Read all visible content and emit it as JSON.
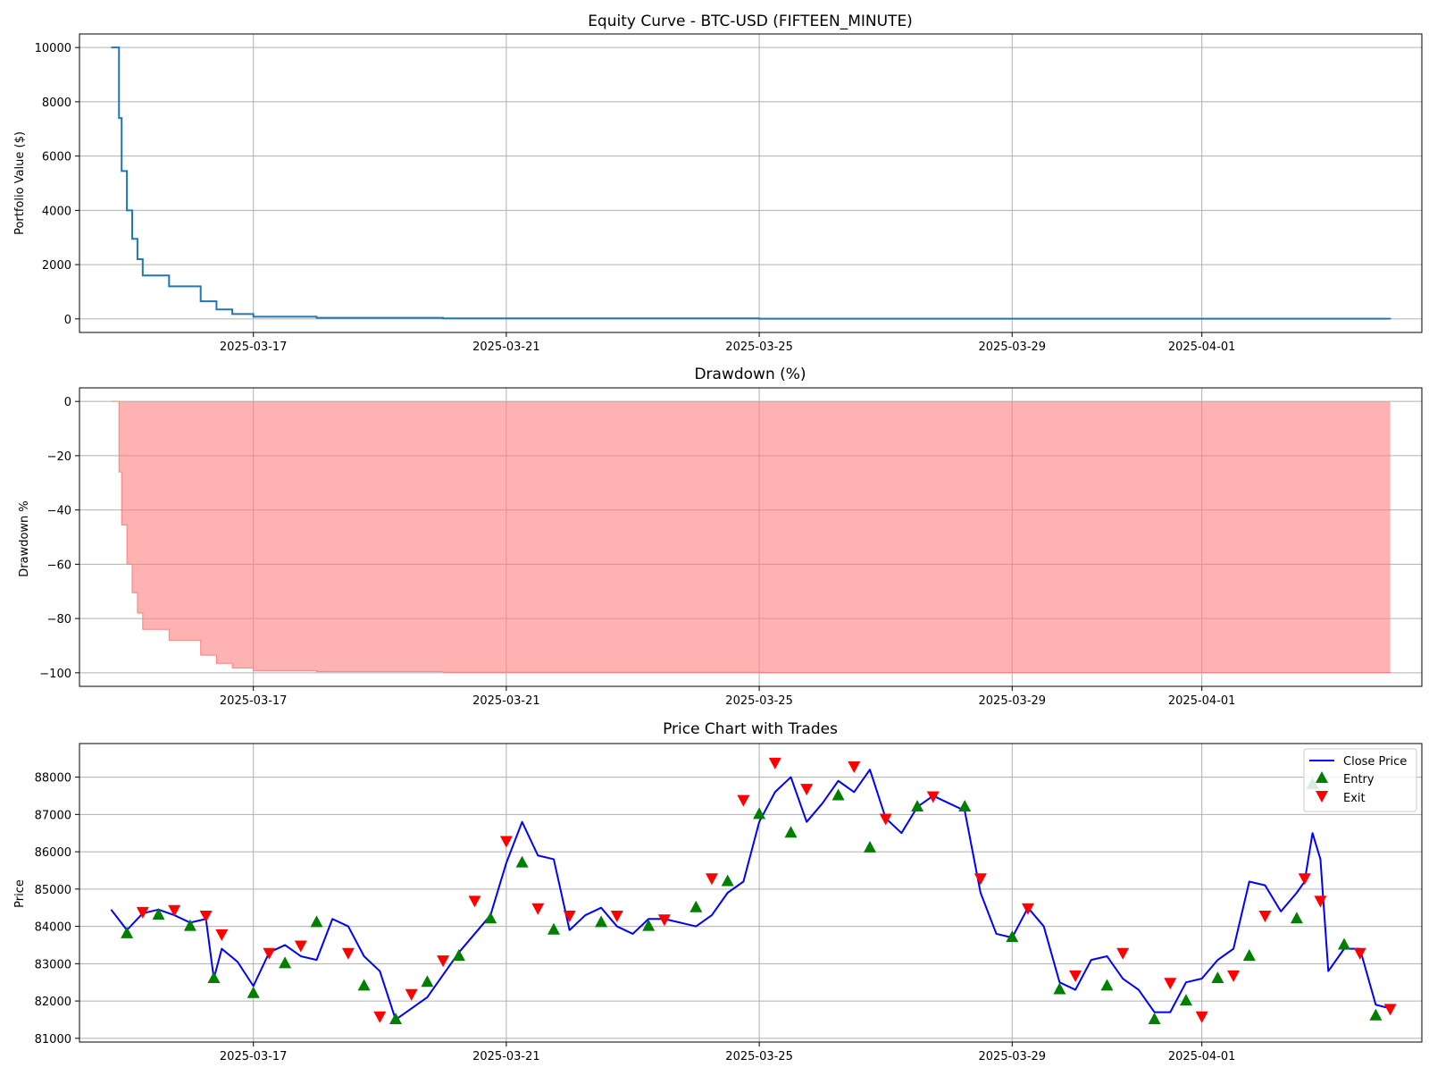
{
  "chart_data": [
    {
      "type": "line",
      "title": "Equity Curve - BTC-USD (FIFTEEN_MINUTE)",
      "ylabel": "Portfolio Value ($)",
      "xlabel": "",
      "x_range": [
        "2025-03-14T18:00",
        "2025-04-03T23:30"
      ],
      "ylim": [
        -500,
        10500
      ],
      "y_ticks": [
        0,
        2000,
        4000,
        6000,
        8000,
        10000
      ],
      "x_ticks": [
        "2025-03-17",
        "2025-03-21",
        "2025-03-25",
        "2025-03-29",
        "2025-04-01"
      ],
      "grid": true,
      "color": "#1f77b4",
      "series": [
        {
          "x": [
            "2025-03-14T18:00",
            "2025-03-14T20:00",
            "2025-03-14T21:00",
            "2025-03-14T22:00",
            "2025-03-15T00:00",
            "2025-03-15T02:00",
            "2025-03-15T04:00",
            "2025-03-15T06:00",
            "2025-03-15T08:00",
            "2025-03-15T10:00",
            "2025-03-15T16:00",
            "2025-03-15T22:00",
            "2025-03-16T04:00",
            "2025-03-16T10:00",
            "2025-03-16T16:00",
            "2025-03-17T00:00",
            "2025-03-18T00:00",
            "2025-03-20T00:00",
            "2025-03-25T00:00",
            "2025-04-03T23:30"
          ],
          "values": [
            10000,
            10000,
            7400,
            5450,
            4000,
            2950,
            2200,
            1600,
            1600,
            1600,
            1200,
            1200,
            650,
            350,
            180,
            80,
            40,
            20,
            8,
            5
          ]
        }
      ]
    },
    {
      "type": "area",
      "title": "Drawdown (%)",
      "ylabel": "Drawdown %",
      "xlabel": "",
      "x_range": [
        "2025-03-14T18:00",
        "2025-04-03T23:30"
      ],
      "ylim": [
        -105,
        5
      ],
      "y_ticks": [
        0,
        -20,
        -40,
        -60,
        -80,
        -100
      ],
      "x_ticks": [
        "2025-03-17",
        "2025-03-21",
        "2025-03-25",
        "2025-03-29",
        "2025-04-01"
      ],
      "grid": true,
      "color": "#ff7f7f",
      "series": [
        {
          "x": [
            "2025-03-14T18:00",
            "2025-03-14T20:00",
            "2025-03-14T21:00",
            "2025-03-14T22:00",
            "2025-03-15T00:00",
            "2025-03-15T02:00",
            "2025-03-15T04:00",
            "2025-03-15T06:00",
            "2025-03-15T08:00",
            "2025-03-15T10:00",
            "2025-03-15T16:00",
            "2025-03-15T22:00",
            "2025-03-16T04:00",
            "2025-03-16T10:00",
            "2025-03-16T16:00",
            "2025-03-17T00:00",
            "2025-03-18T00:00",
            "2025-03-20T00:00",
            "2025-03-25T00:00",
            "2025-04-03T23:30"
          ],
          "values": [
            0,
            0,
            -26,
            -45.5,
            -60,
            -70.5,
            -78,
            -84,
            -84,
            -84,
            -88,
            -88,
            -93.5,
            -96.5,
            -98.2,
            -99.2,
            -99.6,
            -99.8,
            -99.9,
            -99.95
          ]
        }
      ]
    },
    {
      "type": "line",
      "title": "Price Chart with Trades",
      "ylabel": "Price",
      "xlabel": "",
      "x_range": [
        "2025-03-14T18:00",
        "2025-04-03T23:30"
      ],
      "ylim": [
        80900,
        88900
      ],
      "y_ticks": [
        81000,
        82000,
        83000,
        84000,
        85000,
        86000,
        87000,
        88000
      ],
      "x_ticks": [
        "2025-03-17",
        "2025-03-21",
        "2025-03-25",
        "2025-03-29",
        "2025-04-01"
      ],
      "grid": true,
      "legend_position": "top-right",
      "legend": [
        "Close Price",
        "Entry",
        "Exit"
      ],
      "colors": {
        "line": "#0000ff",
        "entry": "#007f00",
        "exit": "#ff0000"
      },
      "series": [
        {
          "name": "Close Price",
          "x": [
            "2025-03-14T18:00",
            "2025-03-15T00:00",
            "2025-03-15T06:00",
            "2025-03-15T12:00",
            "2025-03-15T18:00",
            "2025-03-16T00:00",
            "2025-03-16T06:00",
            "2025-03-16T09:00",
            "2025-03-16T12:00",
            "2025-03-16T18:00",
            "2025-03-17T00:00",
            "2025-03-17T06:00",
            "2025-03-17T12:00",
            "2025-03-17T18:00",
            "2025-03-18T00:00",
            "2025-03-18T06:00",
            "2025-03-18T12:00",
            "2025-03-18T18:00",
            "2025-03-19T00:00",
            "2025-03-19T06:00",
            "2025-03-19T12:00",
            "2025-03-19T18:00",
            "2025-03-20T00:00",
            "2025-03-20T03:00",
            "2025-03-20T06:00",
            "2025-03-20T12:00",
            "2025-03-20T18:00",
            "2025-03-21T00:00",
            "2025-03-21T06:00",
            "2025-03-21T12:00",
            "2025-03-21T18:00",
            "2025-03-22T00:00",
            "2025-03-22T06:00",
            "2025-03-22T12:00",
            "2025-03-22T18:00",
            "2025-03-23T00:00",
            "2025-03-23T06:00",
            "2025-03-23T12:00",
            "2025-03-23T18:00",
            "2025-03-24T00:00",
            "2025-03-24T06:00",
            "2025-03-24T12:00",
            "2025-03-24T18:00",
            "2025-03-25T00:00",
            "2025-03-25T06:00",
            "2025-03-25T12:00",
            "2025-03-25T18:00",
            "2025-03-26T00:00",
            "2025-03-26T06:00",
            "2025-03-26T12:00",
            "2025-03-26T18:00",
            "2025-03-27T00:00",
            "2025-03-27T06:00",
            "2025-03-27T12:00",
            "2025-03-27T18:00",
            "2025-03-28T00:00",
            "2025-03-28T06:00",
            "2025-03-28T12:00",
            "2025-03-28T18:00",
            "2025-03-29T00:00",
            "2025-03-29T06:00",
            "2025-03-29T12:00",
            "2025-03-29T18:00",
            "2025-03-30T00:00",
            "2025-03-30T06:00",
            "2025-03-30T12:00",
            "2025-03-30T18:00",
            "2025-03-31T00:00",
            "2025-03-31T06:00",
            "2025-03-31T12:00",
            "2025-03-31T18:00",
            "2025-04-01T00:00",
            "2025-04-01T06:00",
            "2025-04-01T12:00",
            "2025-04-01T18:00",
            "2025-04-02T00:00",
            "2025-04-02T06:00",
            "2025-04-02T12:00",
            "2025-04-02T15:00",
            "2025-04-02T18:00",
            "2025-04-02T21:00",
            "2025-04-03T00:00",
            "2025-04-03T06:00",
            "2025-04-03T12:00",
            "2025-04-03T18:00",
            "2025-04-03T23:30"
          ],
          "values": [
            84450,
            83900,
            84350,
            84450,
            84300,
            84100,
            84200,
            82600,
            83400,
            83050,
            82400,
            83300,
            83500,
            83200,
            83100,
            84200,
            84000,
            83200,
            82800,
            81500,
            81800,
            82100,
            82700,
            83000,
            83300,
            83800,
            84300,
            85700,
            86800,
            85900,
            85800,
            83900,
            84300,
            84500,
            84000,
            83800,
            84200,
            84200,
            84100,
            84000,
            84300,
            84900,
            85200,
            86800,
            87600,
            88000,
            86800,
            87300,
            87900,
            87600,
            88200,
            86900,
            86500,
            87200,
            87500,
            87300,
            87100,
            84900,
            83800,
            83700,
            84500,
            84000,
            82500,
            82300,
            83100,
            83200,
            82600,
            82300,
            81700,
            81700,
            82500,
            82600,
            83100,
            83400,
            85200,
            85100,
            84400,
            84900,
            85200,
            86500,
            85800,
            82800,
            83400,
            83400,
            81900,
            81800
          ]
        },
        {
          "name": "Entry",
          "x": [
            "2025-03-15T00:00",
            "2025-03-15T12:00",
            "2025-03-16T00:00",
            "2025-03-16T09:00",
            "2025-03-17T00:00",
            "2025-03-17T12:00",
            "2025-03-18T00:00",
            "2025-03-18T18:00",
            "2025-03-19T06:00",
            "2025-03-19T18:00",
            "2025-03-20T06:00",
            "2025-03-20T18:00",
            "2025-03-21T06:00",
            "2025-03-21T18:00",
            "2025-03-22T12:00",
            "2025-03-23T06:00",
            "2025-03-24T00:00",
            "2025-03-24T12:00",
            "2025-03-25T00:00",
            "2025-03-25T12:00",
            "2025-03-26T06:00",
            "2025-03-26T18:00",
            "2025-03-27T12:00",
            "2025-03-28T06:00",
            "2025-03-29T00:00",
            "2025-03-29T18:00",
            "2025-03-30T12:00",
            "2025-03-31T06:00",
            "2025-03-31T18:00",
            "2025-04-01T06:00",
            "2025-04-01T18:00",
            "2025-04-02T12:00",
            "2025-04-02T18:00",
            "2025-04-03T06:00",
            "2025-04-03T18:00"
          ],
          "values": [
            83800,
            84300,
            84000,
            82600,
            82200,
            83000,
            84100,
            82400,
            81500,
            82500,
            83200,
            84200,
            85700,
            83900,
            84100,
            84000,
            84500,
            85200,
            87000,
            86500,
            87500,
            86100,
            87200,
            87200,
            83700,
            82300,
            82400,
            81500,
            82000,
            82600,
            83200,
            84200,
            87800,
            83500,
            81600
          ]
        },
        {
          "name": "Exit",
          "x": [
            "2025-03-15T06:00",
            "2025-03-15T18:00",
            "2025-03-16T06:00",
            "2025-03-16T12:00",
            "2025-03-17T06:00",
            "2025-03-17T18:00",
            "2025-03-18T12:00",
            "2025-03-19T00:00",
            "2025-03-19T12:00",
            "2025-03-20T00:00",
            "2025-03-20T12:00",
            "2025-03-21T00:00",
            "2025-03-21T12:00",
            "2025-03-22T00:00",
            "2025-03-22T18:00",
            "2025-03-23T12:00",
            "2025-03-24T06:00",
            "2025-03-24T18:00",
            "2025-03-25T06:00",
            "2025-03-25T18:00",
            "2025-03-26T12:00",
            "2025-03-27T00:00",
            "2025-03-27T18:00",
            "2025-03-28T12:00",
            "2025-03-29T06:00",
            "2025-03-30T00:00",
            "2025-03-30T18:00",
            "2025-03-31T12:00",
            "2025-04-01T00:00",
            "2025-04-01T12:00",
            "2025-04-02T00:00",
            "2025-04-02T15:00",
            "2025-04-02T21:00",
            "2025-04-03T12:00",
            "2025-04-03T23:30"
          ],
          "values": [
            84400,
            84450,
            84300,
            83800,
            83300,
            83500,
            83300,
            81600,
            82200,
            83100,
            84700,
            86300,
            84500,
            84300,
            84300,
            84200,
            85300,
            87400,
            88400,
            87700,
            88300,
            86900,
            87500,
            85300,
            84500,
            82700,
            83300,
            82500,
            81600,
            82700,
            84300,
            85300,
            84700,
            83300,
            81800
          ]
        }
      ]
    }
  ]
}
